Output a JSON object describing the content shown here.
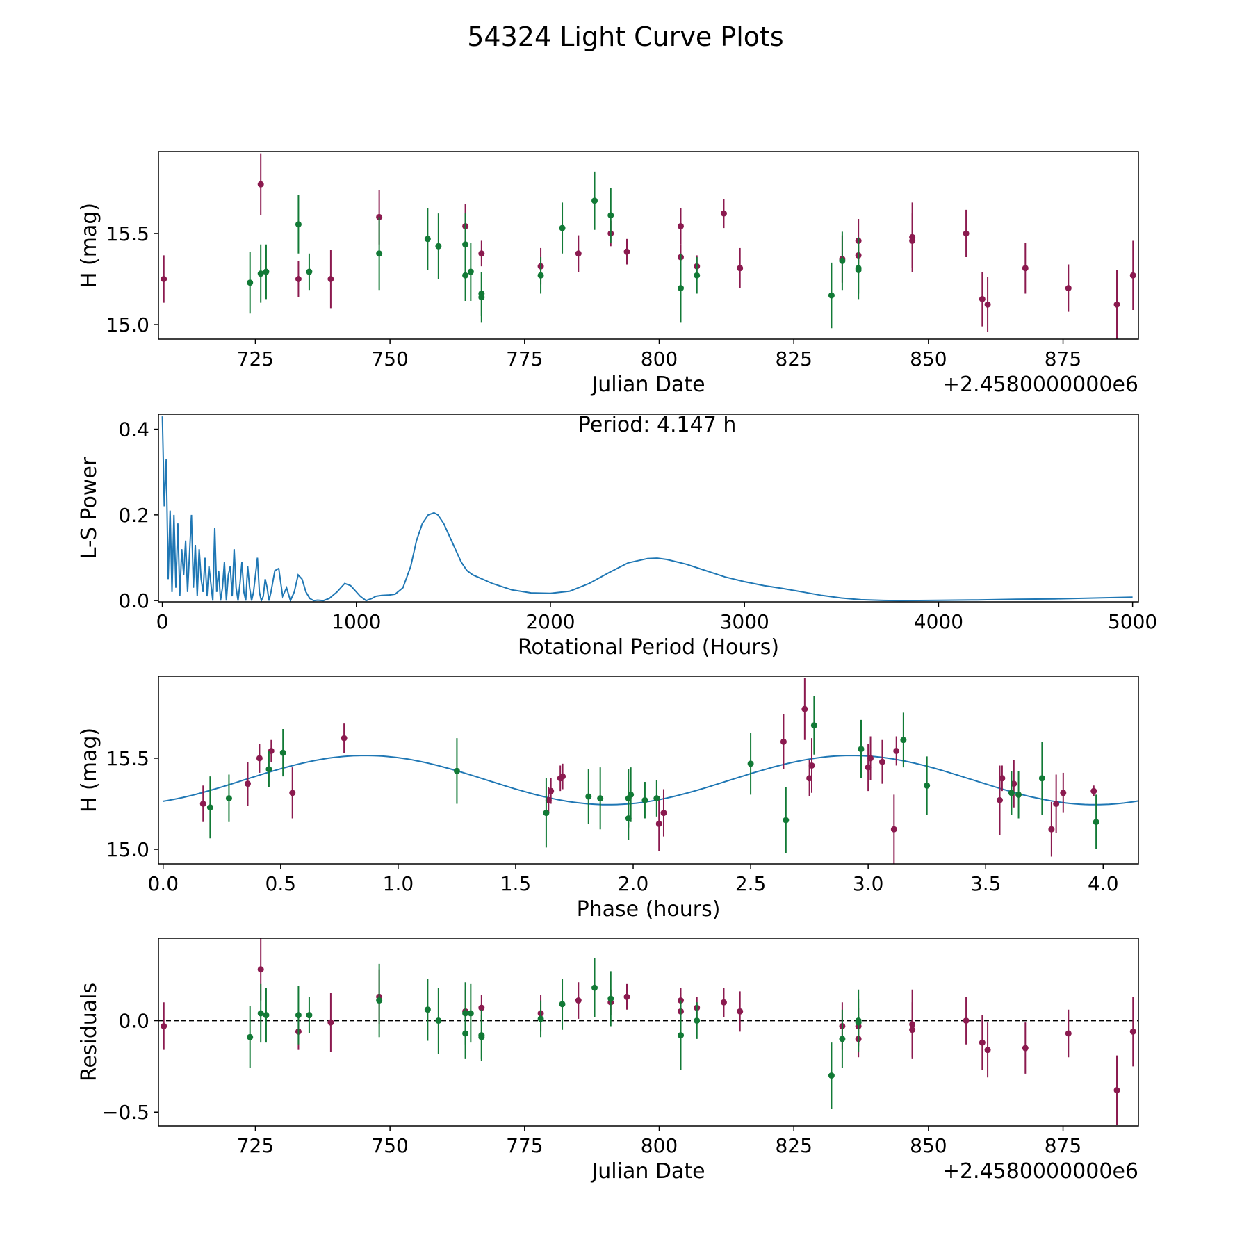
{
  "figure_title": "54324 Light Curve Plots",
  "colors": {
    "set_a": "#8b1a4f",
    "set_b": "#127a36",
    "curve": "#1f77b4",
    "axes": "#000000"
  },
  "chart_data": [
    {
      "type": "scatter",
      "name": "light-curve",
      "xlabel": "Julian Date",
      "ylabel": "H (mag)",
      "offset_label": "+2.4580000000e6",
      "xlim": [
        707,
        889
      ],
      "ylim": [
        14.92,
        15.95
      ],
      "xticks": [
        725,
        750,
        775,
        800,
        825,
        850,
        875
      ],
      "yticks": [
        15.0,
        15.5
      ],
      "series": [
        {
          "name": "purple",
          "color": "#8b1a4f",
          "points": [
            [
              708,
              15.25,
              0.13
            ],
            [
              726,
              15.77,
              0.17
            ],
            [
              733,
              15.25,
              0.1
            ],
            [
              739,
              15.25,
              0.16
            ],
            [
              748,
              15.59,
              0.15
            ],
            [
              764,
              15.54,
              0.12
            ],
            [
              767,
              15.39,
              0.07
            ],
            [
              778,
              15.32,
              0.1
            ],
            [
              785,
              15.39,
              0.1
            ],
            [
              791,
              15.5,
              0.07
            ],
            [
              794,
              15.4,
              0.07
            ],
            [
              804,
              15.54,
              0.1
            ],
            [
              804,
              15.37,
              0.07
            ],
            [
              807,
              15.32,
              0.06
            ],
            [
              812,
              15.61,
              0.08
            ],
            [
              815,
              15.31,
              0.11
            ],
            [
              834,
              15.36,
              0.13
            ],
            [
              837,
              15.46,
              0.12
            ],
            [
              837,
              15.38,
              0.1
            ],
            [
              847,
              15.48,
              0.19
            ],
            [
              847,
              15.46,
              0.15
            ],
            [
              857,
              15.5,
              0.13
            ],
            [
              860,
              15.14,
              0.15
            ],
            [
              861,
              15.11,
              0.15
            ],
            [
              868,
              15.31,
              0.14
            ],
            [
              876,
              15.2,
              0.13
            ],
            [
              885,
              15.11,
              0.19
            ],
            [
              888,
              15.27,
              0.19
            ]
          ]
        },
        {
          "name": "green",
          "color": "#127a36",
          "points": [
            [
              724,
              15.23,
              0.17
            ],
            [
              726,
              15.28,
              0.16
            ],
            [
              727,
              15.29,
              0.15
            ],
            [
              733,
              15.55,
              0.16
            ],
            [
              735,
              15.29,
              0.1
            ],
            [
              748,
              15.39,
              0.2
            ],
            [
              757,
              15.47,
              0.17
            ],
            [
              759,
              15.43,
              0.18
            ],
            [
              764,
              15.44,
              0.17
            ],
            [
              764,
              15.27,
              0.14
            ],
            [
              765,
              15.29,
              0.16
            ],
            [
              767,
              15.15,
              0.14
            ],
            [
              767,
              15.17,
              0.12
            ],
            [
              778,
              15.27,
              0.1
            ],
            [
              782,
              15.53,
              0.14
            ],
            [
              788,
              15.68,
              0.16
            ],
            [
              791,
              15.6,
              0.15
            ],
            [
              804,
              15.2,
              0.19
            ],
            [
              807,
              15.27,
              0.1
            ],
            [
              832,
              15.16,
              0.18
            ],
            [
              834,
              15.35,
              0.16
            ],
            [
              837,
              15.31,
              0.17
            ],
            [
              837,
              15.3,
              0.13
            ]
          ]
        }
      ]
    },
    {
      "type": "line",
      "name": "periodogram",
      "xlabel": "Rotational Period (Hours)",
      "ylabel": "L-S Power",
      "annotation": "Period: 4.147 h",
      "xlim": [
        -20,
        5030
      ],
      "ylim": [
        -0.003,
        0.435
      ],
      "xticks": [
        0,
        1000,
        2000,
        3000,
        4000,
        5000
      ],
      "yticks": [
        0.0,
        0.2,
        0.4
      ],
      "x": [
        0,
        10,
        20,
        30,
        40,
        50,
        60,
        70,
        80,
        90,
        100,
        110,
        120,
        130,
        140,
        150,
        160,
        170,
        180,
        190,
        200,
        210,
        220,
        230,
        240,
        250,
        260,
        270,
        280,
        290,
        300,
        310,
        320,
        330,
        340,
        350,
        360,
        370,
        380,
        390,
        400,
        410,
        420,
        430,
        440,
        450,
        460,
        470,
        480,
        490,
        500,
        510,
        520,
        530,
        540,
        550,
        560,
        580,
        600,
        620,
        640,
        660,
        680,
        700,
        720,
        740,
        760,
        780,
        800,
        830,
        860,
        900,
        940,
        970,
        990,
        1020,
        1050,
        1080,
        1100,
        1130,
        1170,
        1200,
        1240,
        1280,
        1310,
        1340,
        1370,
        1400,
        1420,
        1450,
        1480,
        1510,
        1540,
        1570,
        1600,
        1650,
        1700,
        1800,
        1900,
        2000,
        2100,
        2200,
        2300,
        2400,
        2500,
        2550,
        2600,
        2700,
        2800,
        2900,
        3000,
        3100,
        3200,
        3300,
        3400,
        3500,
        3600,
        3700,
        3800,
        4000,
        4200,
        4400,
        4600,
        4800,
        5000
      ],
      "y": [
        0.43,
        0.22,
        0.33,
        0.05,
        0.21,
        0.02,
        0.2,
        0.03,
        0.18,
        0.01,
        0.12,
        0.06,
        0.14,
        0.02,
        0.11,
        0.2,
        0.03,
        0.13,
        0.01,
        0.12,
        0.05,
        0.02,
        0.1,
        0.01,
        0.08,
        0.04,
        0.0,
        0.17,
        0.02,
        0.07,
        0.0,
        0.03,
        0.09,
        0.0,
        0.06,
        0.08,
        0.01,
        0.12,
        0.03,
        0.0,
        0.04,
        0.09,
        0.02,
        0.0,
        0.08,
        0.03,
        0.0,
        0.02,
        0.06,
        0.1,
        0.02,
        0.0,
        0.01,
        0.05,
        0.03,
        0.0,
        0.02,
        0.07,
        0.075,
        0.01,
        0.03,
        0.0,
        0.02,
        0.06,
        0.05,
        0.02,
        0.005,
        0.0,
        0.001,
        0.0,
        0.005,
        0.02,
        0.04,
        0.035,
        0.025,
        0.01,
        0.0,
        0.005,
        0.01,
        0.012,
        0.013,
        0.015,
        0.03,
        0.08,
        0.14,
        0.18,
        0.2,
        0.205,
        0.2,
        0.18,
        0.15,
        0.12,
        0.09,
        0.07,
        0.06,
        0.05,
        0.04,
        0.025,
        0.018,
        0.017,
        0.022,
        0.04,
        0.065,
        0.088,
        0.098,
        0.099,
        0.096,
        0.085,
        0.07,
        0.055,
        0.044,
        0.035,
        0.028,
        0.02,
        0.012,
        0.006,
        0.002,
        0.0005,
        0.0,
        0.0005,
        0.0015,
        0.003,
        0.004,
        0.006,
        0.008
      ]
    },
    {
      "type": "scatter",
      "name": "phase-folded",
      "xlabel": "Phase (hours)",
      "ylabel": "H (mag)",
      "xlim": [
        -0.02,
        4.15
      ],
      "ylim": [
        14.92,
        15.95
      ],
      "xticks": [
        0.0,
        0.5,
        1.0,
        1.5,
        2.0,
        2.5,
        3.0,
        3.5,
        4.0
      ],
      "yticks": [
        15.0,
        15.5
      ],
      "fit": {
        "mean": 15.38,
        "amplitude": 0.135,
        "period": 2.07,
        "peak_phase": 0.86
      },
      "series": [
        {
          "name": "purple",
          "color": "#8b1a4f",
          "points": [
            [
              0.17,
              15.25,
              0.1
            ],
            [
              0.36,
              15.36,
              0.12
            ],
            [
              0.41,
              15.5,
              0.08
            ],
            [
              0.46,
              15.54,
              0.06
            ],
            [
              0.55,
              15.31,
              0.14
            ],
            [
              0.77,
              15.61,
              0.08
            ],
            [
              1.64,
              15.27,
              0.07
            ],
            [
              1.65,
              15.32,
              0.07
            ],
            [
              1.69,
              15.39,
              0.07
            ],
            [
              1.7,
              15.4,
              0.07
            ],
            [
              2.11,
              15.14,
              0.15
            ],
            [
              2.13,
              15.2,
              0.13
            ],
            [
              2.64,
              15.59,
              0.15
            ],
            [
              2.73,
              15.77,
              0.17
            ],
            [
              2.75,
              15.39,
              0.1
            ],
            [
              2.76,
              15.46,
              0.15
            ],
            [
              3.0,
              15.45,
              0.13
            ],
            [
              3.01,
              15.5,
              0.12
            ],
            [
              3.06,
              15.48,
              0.12
            ],
            [
              3.11,
              15.11,
              0.19
            ],
            [
              3.12,
              15.54,
              0.08
            ],
            [
              3.56,
              15.27,
              0.19
            ],
            [
              3.57,
              15.39,
              0.07
            ],
            [
              3.62,
              15.36,
              0.13
            ],
            [
              3.78,
              15.11,
              0.15
            ],
            [
              3.8,
              15.25,
              0.16
            ],
            [
              3.83,
              15.31,
              0.11
            ],
            [
              3.96,
              15.32,
              0.03
            ]
          ]
        },
        {
          "name": "green",
          "color": "#127a36",
          "points": [
            [
              0.2,
              15.23,
              0.17
            ],
            [
              0.28,
              15.28,
              0.13
            ],
            [
              0.45,
              15.44,
              0.1
            ],
            [
              0.51,
              15.53,
              0.13
            ],
            [
              1.25,
              15.43,
              0.18
            ],
            [
              1.63,
              15.2,
              0.19
            ],
            [
              1.81,
              15.29,
              0.15
            ],
            [
              1.86,
              15.28,
              0.17
            ],
            [
              1.98,
              15.28,
              0.16
            ],
            [
              1.98,
              15.17,
              0.12
            ],
            [
              1.99,
              15.3,
              0.15
            ],
            [
              2.05,
              15.27,
              0.1
            ],
            [
              2.1,
              15.28,
              0.1
            ],
            [
              2.5,
              15.47,
              0.17
            ],
            [
              2.65,
              15.16,
              0.18
            ],
            [
              2.77,
              15.68,
              0.16
            ],
            [
              2.97,
              15.55,
              0.16
            ],
            [
              3.15,
              15.6,
              0.15
            ],
            [
              3.25,
              15.35,
              0.16
            ],
            [
              3.61,
              15.31,
              0.12
            ],
            [
              3.64,
              15.3,
              0.13
            ],
            [
              3.74,
              15.39,
              0.2
            ],
            [
              3.97,
              15.15,
              0.15
            ]
          ]
        }
      ]
    },
    {
      "type": "scatter",
      "name": "residuals",
      "xlabel": "Julian Date",
      "ylabel": "Residuals",
      "offset_label": "+2.4580000000e6",
      "xlim": [
        707,
        889
      ],
      "ylim": [
        -0.575,
        0.45
      ],
      "xticks": [
        725,
        750,
        775,
        800,
        825,
        850,
        875
      ],
      "yticks": [
        -0.5,
        0.0
      ],
      "ytick_labels": [
        "−0.5",
        "0.0"
      ],
      "zero_line": 0.0,
      "series": [
        {
          "name": "purple",
          "color": "#8b1a4f",
          "points": [
            [
              708,
              -0.03,
              0.13
            ],
            [
              726,
              0.28,
              0.17
            ],
            [
              733,
              -0.06,
              0.1
            ],
            [
              739,
              -0.01,
              0.16
            ],
            [
              748,
              0.13,
              0.15
            ],
            [
              764,
              0.05,
              0.12
            ],
            [
              767,
              0.07,
              0.07
            ],
            [
              778,
              0.04,
              0.1
            ],
            [
              785,
              0.11,
              0.1
            ],
            [
              791,
              0.1,
              0.07
            ],
            [
              794,
              0.13,
              0.07
            ],
            [
              804,
              0.11,
              0.07
            ],
            [
              804,
              0.05,
              0.1
            ],
            [
              807,
              0.07,
              0.06
            ],
            [
              812,
              0.1,
              0.08
            ],
            [
              815,
              0.05,
              0.11
            ],
            [
              834,
              -0.03,
              0.13
            ],
            [
              837,
              -0.03,
              0.1
            ],
            [
              837,
              -0.1,
              0.1
            ],
            [
              847,
              -0.02,
              0.19
            ],
            [
              847,
              -0.05,
              0.15
            ],
            [
              857,
              0.0,
              0.13
            ],
            [
              860,
              -0.12,
              0.15
            ],
            [
              861,
              -0.16,
              0.15
            ],
            [
              868,
              -0.15,
              0.14
            ],
            [
              876,
              -0.07,
              0.13
            ],
            [
              885,
              -0.38,
              0.19
            ],
            [
              888,
              -0.06,
              0.19
            ]
          ]
        },
        {
          "name": "green",
          "color": "#127a36",
          "points": [
            [
              724,
              -0.09,
              0.17
            ],
            [
              726,
              0.04,
              0.16
            ],
            [
              727,
              0.03,
              0.15
            ],
            [
              733,
              0.03,
              0.16
            ],
            [
              735,
              0.03,
              0.1
            ],
            [
              748,
              0.11,
              0.2
            ],
            [
              757,
              0.06,
              0.17
            ],
            [
              759,
              0.0,
              0.18
            ],
            [
              764,
              -0.07,
              0.14
            ],
            [
              764,
              0.04,
              0.17
            ],
            [
              765,
              0.04,
              0.16
            ],
            [
              767,
              -0.08,
              0.14
            ],
            [
              767,
              -0.09,
              0.12
            ],
            [
              778,
              0.01,
              0.1
            ],
            [
              782,
              0.09,
              0.14
            ],
            [
              788,
              0.18,
              0.16
            ],
            [
              791,
              0.12,
              0.15
            ],
            [
              804,
              -0.08,
              0.19
            ],
            [
              807,
              0.0,
              0.1
            ],
            [
              832,
              -0.3,
              0.18
            ],
            [
              834,
              -0.1,
              0.16
            ],
            [
              837,
              0.0,
              0.17
            ],
            [
              837,
              -0.01,
              0.13
            ]
          ]
        }
      ]
    }
  ]
}
